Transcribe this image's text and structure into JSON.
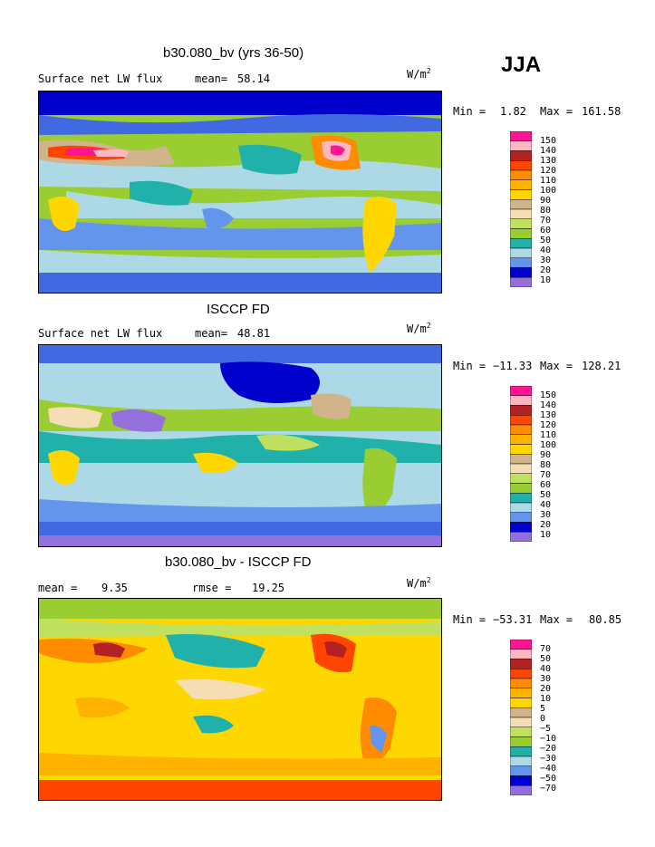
{
  "season": "JJA",
  "palette": {
    "c1": "#9370db",
    "c2": "#0000cd",
    "c3": "#4169e1",
    "c4": "#6495ed",
    "c5": "#add8e6",
    "c6": "#20b2aa",
    "c7": "#9acd32",
    "c8": "#c0e060",
    "c9": "#f5deb3",
    "c10": "#d2b48c",
    "c11": "#ffd700",
    "c12": "#ffb300",
    "c13": "#ff8c00",
    "c14": "#ff4500",
    "c15": "#b22222",
    "c16": "#ffb6c1",
    "c17": "#ff1493"
  },
  "panels": [
    {
      "title": "b30.080_bv (yrs 36-50)",
      "variable": "Surface net LW flux",
      "mean_label": "mean=",
      "mean_value": "58.14",
      "rmse_label": "",
      "rmse_value": "",
      "units": "W/m",
      "units_sup": "2",
      "min_label": "Min =",
      "min_value": "1.82",
      "max_label": "Max =",
      "max_value": "161.58",
      "colorbar": [
        "150",
        "140",
        "130",
        "120",
        "110",
        "100",
        "90",
        "80",
        "70",
        "60",
        "50",
        "40",
        "30",
        "20",
        "10"
      ]
    },
    {
      "title": "ISCCP FD",
      "variable": "Surface net LW flux",
      "mean_label": "mean=",
      "mean_value": "48.81",
      "rmse_label": "",
      "rmse_value": "",
      "units": "W/m",
      "units_sup": "2",
      "min_label": "Min =",
      "min_value": "−11.33",
      "max_label": "Max =",
      "max_value": "128.21",
      "colorbar": [
        "150",
        "140",
        "130",
        "120",
        "110",
        "100",
        "90",
        "80",
        "70",
        "60",
        "50",
        "40",
        "30",
        "20",
        "10"
      ]
    },
    {
      "title": "b30.080_bv - ISCCP FD",
      "variable": "",
      "mean_label": "mean =",
      "mean_value": "9.35",
      "rmse_label": "rmse =",
      "rmse_value": "19.25",
      "units": "W/m",
      "units_sup": "2",
      "min_label": "Min =",
      "min_value": "−53.31",
      "max_label": "Max =",
      "max_value": "80.85",
      "colorbar": [
        "70",
        "50",
        "40",
        "30",
        "20",
        "10",
        "5",
        "0",
        "−5",
        "−10",
        "−20",
        "−30",
        "−40",
        "−50",
        "−70"
      ]
    }
  ],
  "chart_data": [
    {
      "type": "heatmap",
      "title": "b30.080_bv (yrs 36-50)",
      "subtitle": "Surface net LW flux",
      "units": "W/m2",
      "mean": 58.14,
      "min": 1.82,
      "max": 161.58,
      "contour_levels": [
        10,
        20,
        30,
        40,
        50,
        60,
        70,
        80,
        90,
        100,
        110,
        120,
        130,
        140,
        150
      ]
    },
    {
      "type": "heatmap",
      "title": "ISCCP FD",
      "subtitle": "Surface net LW flux",
      "units": "W/m2",
      "mean": 48.81,
      "min": -11.33,
      "max": 128.21,
      "contour_levels": [
        10,
        20,
        30,
        40,
        50,
        60,
        70,
        80,
        90,
        100,
        110,
        120,
        130,
        140,
        150
      ]
    },
    {
      "type": "heatmap",
      "title": "b30.080_bv - ISCCP FD",
      "units": "W/m2",
      "mean": 9.35,
      "rmse": 19.25,
      "min": -53.31,
      "max": 80.85,
      "contour_levels": [
        -70,
        -50,
        -40,
        -30,
        -20,
        -10,
        -5,
        0,
        5,
        10,
        20,
        30,
        40,
        50,
        70
      ]
    }
  ]
}
